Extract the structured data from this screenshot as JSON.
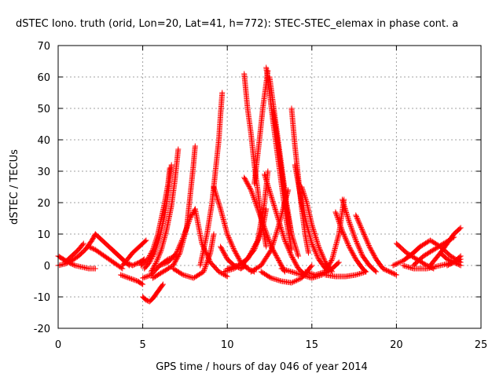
{
  "chart_data": {
    "type": "scatter",
    "title": "dSTEC Iono. truth (orid, Lon=20, Lat=41, h=772): STEC-STEC_elemax in phase cont. a",
    "xlabel": "GPS time / hours of day 046 of year 2014",
    "ylabel": "dSTEC  / TECUs",
    "xlim": [
      0,
      25
    ],
    "ylim": [
      -20,
      70
    ],
    "xticks": [
      0,
      5,
      10,
      15,
      20,
      25
    ],
    "yticks": [
      -20,
      -10,
      0,
      10,
      20,
      30,
      40,
      50,
      60,
      70
    ],
    "grid": true,
    "marker": "+",
    "series_color": "#ff0000",
    "series": [
      {
        "x": [
          0.0,
          0.3,
          0.6,
          1.0,
          1.4,
          1.8,
          2.2
        ],
        "y": [
          3.0,
          2.0,
          1.0,
          0.0,
          -0.5,
          -1.0,
          -1.0
        ]
      },
      {
        "x": [
          0.0,
          0.4,
          0.8,
          1.2,
          1.6,
          2.0,
          2.2
        ],
        "y": [
          0.0,
          0.5,
          1.5,
          3.0,
          5.0,
          8.0,
          10.0
        ]
      },
      {
        "x": [
          0.4,
          0.8,
          1.2,
          1.5
        ],
        "y": [
          1.0,
          3.0,
          5.0,
          7.0
        ]
      },
      {
        "x": [
          1.8,
          2.2,
          2.6,
          3.0,
          3.4,
          3.8
        ],
        "y": [
          6.0,
          5.0,
          3.5,
          2.0,
          0.5,
          -1.0
        ]
      },
      {
        "x": [
          2.2,
          2.6,
          3.0,
          3.4,
          3.8,
          4.2
        ],
        "y": [
          10.0,
          8.0,
          6.0,
          4.0,
          2.0,
          0.0
        ]
      },
      {
        "x": [
          3.2,
          3.6,
          4.0,
          4.4,
          4.8,
          5.1
        ],
        "y": [
          5.0,
          3.0,
          1.0,
          0.0,
          1.0,
          2.0
        ]
      },
      {
        "x": [
          3.8,
          4.1,
          4.4,
          4.6
        ],
        "y": [
          0.0,
          2.0,
          4.0,
          5.0
        ]
      },
      {
        "x": [
          4.6,
          4.8,
          5.0,
          5.2
        ],
        "y": [
          5.0,
          6.0,
          7.0,
          8.0
        ]
      },
      {
        "x": [
          3.7,
          4.2,
          4.7,
          5.0
        ],
        "y": [
          -3.0,
          -4.0,
          -5.0,
          -6.0
        ]
      },
      {
        "x": [
          5.0,
          5.2,
          5.4,
          5.6,
          5.8,
          6.0,
          6.2
        ],
        "y": [
          -10.0,
          -11.0,
          -11.5,
          -10.5,
          -9.0,
          -7.5,
          -6.0
        ]
      },
      {
        "x": [
          4.9,
          5.3,
          5.6,
          5.9,
          6.1,
          6.3,
          6.5,
          6.6
        ],
        "y": [
          0.0,
          2.0,
          5.0,
          10.0,
          15.0,
          20.0,
          26.0,
          31.0
        ]
      },
      {
        "x": [
          5.1,
          5.4,
          5.7,
          6.0,
          6.3,
          6.5,
          6.7
        ],
        "y": [
          -1.0,
          1.0,
          4.0,
          9.0,
          16.0,
          23.0,
          32.0
        ]
      },
      {
        "x": [
          5.5,
          5.8,
          6.1,
          6.4,
          6.7,
          6.9,
          7.1
        ],
        "y": [
          -2.0,
          1.0,
          5.0,
          11.0,
          19.0,
          27.0,
          37.0
        ]
      },
      {
        "x": [
          5.0,
          5.5,
          6.0,
          6.5,
          7.0
        ],
        "y": [
          -4.0,
          -3.0,
          0.0,
          2.0,
          3.0
        ]
      },
      {
        "x": [
          5.6,
          6.2,
          6.8,
          7.2,
          7.6,
          7.8,
          8.0,
          8.1
        ],
        "y": [
          -4.0,
          -2.0,
          0.0,
          4.0,
          12.0,
          22.0,
          32.0,
          38.0
        ]
      },
      {
        "x": [
          6.0,
          6.5,
          7.0,
          7.4,
          7.8,
          8.1
        ],
        "y": [
          0.0,
          1.0,
          4.0,
          9.0,
          15.0,
          18.0
        ]
      },
      {
        "x": [
          8.1,
          8.5,
          9.0,
          9.5,
          10.0
        ],
        "y": [
          18.0,
          7.0,
          1.0,
          -2.0,
          -3.5
        ]
      },
      {
        "x": [
          6.8,
          7.4,
          8.0,
          8.6,
          9.0,
          9.2
        ],
        "y": [
          -1.0,
          -3.0,
          -4.0,
          -2.0,
          4.0,
          10.0
        ]
      },
      {
        "x": [
          8.4,
          8.8,
          9.1,
          9.3,
          9.5,
          9.6,
          9.7
        ],
        "y": [
          0.0,
          10.0,
          20.0,
          30.0,
          40.0,
          48.0,
          55.0
        ]
      },
      {
        "x": [
          9.2,
          9.6,
          10.0,
          10.4,
          10.8,
          11.2,
          11.6
        ],
        "y": [
          25.0,
          18.0,
          10.0,
          5.0,
          1.0,
          -1.0,
          -2.0
        ]
      },
      {
        "x": [
          9.6,
          10.0,
          10.4,
          10.8,
          11.1
        ],
        "y": [
          6.0,
          2.0,
          0.0,
          -1.0,
          0.0
        ]
      },
      {
        "x": [
          10.0,
          10.6,
          11.2,
          11.8,
          12.2,
          12.4
        ],
        "y": [
          -1.0,
          0.0,
          2.0,
          8.0,
          20.0,
          30.0
        ]
      },
      {
        "x": [
          9.8,
          10.4,
          11.0,
          11.6,
          12.1,
          12.3
        ],
        "y": [
          -2.0,
          -1.0,
          1.0,
          5.0,
          12.0,
          18.0
        ]
      },
      {
        "x": [
          11.0,
          11.2,
          11.4,
          11.6,
          11.8,
          12.0,
          12.3
        ],
        "y": [
          61.0,
          50.0,
          42.0,
          32.0,
          24.0,
          15.0,
          6.0
        ]
      },
      {
        "x": [
          11.6,
          11.9,
          12.1,
          12.3,
          12.4
        ],
        "y": [
          26.0,
          40.0,
          50.0,
          58.0,
          62.0
        ]
      },
      {
        "x": [
          12.3,
          12.5,
          12.7,
          12.9,
          13.1,
          13.3,
          13.5,
          13.8
        ],
        "y": [
          63.0,
          55.0,
          46.0,
          38.0,
          30.0,
          22.0,
          14.0,
          5.0
        ]
      },
      {
        "x": [
          12.5,
          12.7,
          12.9,
          13.1,
          13.3,
          13.5,
          13.8
        ],
        "y": [
          60.0,
          52.0,
          44.0,
          36.0,
          28.0,
          20.0,
          10.0
        ]
      },
      {
        "x": [
          12.7,
          12.9,
          13.1,
          13.3,
          13.5,
          13.8,
          14.2
        ],
        "y": [
          49.0,
          42.0,
          34.0,
          26.0,
          18.0,
          10.0,
          3.0
        ]
      },
      {
        "x": [
          11.0,
          11.4,
          11.8,
          12.2,
          12.6,
          13.0,
          13.4
        ],
        "y": [
          28.0,
          24.0,
          18.0,
          12.0,
          6.0,
          2.0,
          -2.0
        ]
      },
      {
        "x": [
          12.2,
          12.6,
          13.0,
          13.4,
          13.8,
          14.2,
          14.6
        ],
        "y": [
          29.0,
          22.0,
          15.0,
          8.0,
          3.0,
          -1.0,
          -3.0
        ]
      },
      {
        "x": [
          11.4,
          12.0,
          12.6,
          13.0,
          13.4,
          13.6
        ],
        "y": [
          -2.0,
          0.0,
          5.0,
          12.0,
          20.0,
          24.0
        ]
      },
      {
        "x": [
          13.8,
          14.0,
          14.2,
          14.4,
          14.6,
          14.8
        ],
        "y": [
          50.0,
          38.0,
          28.0,
          18.0,
          10.0,
          4.0
        ]
      },
      {
        "x": [
          14.0,
          14.2,
          14.4,
          14.7,
          15.0,
          15.4,
          15.8
        ],
        "y": [
          32.0,
          26.0,
          20.0,
          13.0,
          7.0,
          2.0,
          -1.0
        ]
      },
      {
        "x": [
          14.4,
          14.7,
          15.0,
          15.4,
          15.8,
          16.2
        ],
        "y": [
          25.0,
          20.0,
          13.0,
          6.0,
          1.0,
          -2.0
        ]
      },
      {
        "x": [
          12.0,
          12.6,
          13.2,
          13.8,
          14.4,
          15.0
        ],
        "y": [
          -2.0,
          -4.0,
          -5.0,
          -5.5,
          -4.0,
          0.0
        ]
      },
      {
        "x": [
          13.2,
          13.8,
          14.4,
          15.0,
          15.6,
          16.2,
          16.6
        ],
        "y": [
          -1.0,
          -2.0,
          -3.0,
          -4.0,
          -3.0,
          -1.0,
          1.0
        ]
      },
      {
        "x": [
          14.6,
          15.2,
          15.8,
          16.2,
          16.6,
          16.9
        ],
        "y": [
          -2.0,
          -3.0,
          -2.0,
          2.0,
          10.0,
          21.0
        ]
      },
      {
        "x": [
          16.8,
          17.2,
          17.6,
          18.0,
          18.4,
          18.8
        ],
        "y": [
          21.0,
          14.0,
          8.0,
          3.0,
          0.0,
          -2.0
        ]
      },
      {
        "x": [
          16.4,
          16.8,
          17.2,
          17.6,
          18.0,
          18.2
        ],
        "y": [
          17.0,
          11.0,
          6.0,
          2.0,
          -1.0,
          -2.0
        ]
      },
      {
        "x": [
          17.6,
          18.0,
          18.4,
          18.8,
          19.2,
          19.6,
          20.0
        ],
        "y": [
          16.0,
          11.0,
          6.0,
          2.0,
          -1.0,
          -2.0,
          -3.0
        ]
      },
      {
        "x": [
          15.8,
          16.4,
          17.0,
          17.6,
          18.2
        ],
        "y": [
          -3.0,
          -3.5,
          -3.5,
          -3.0,
          -2.0
        ]
      },
      {
        "x": [
          20.0,
          20.6,
          21.2,
          21.8,
          22.2
        ],
        "y": [
          7.0,
          4.0,
          2.0,
          0.0,
          -1.0
        ]
      },
      {
        "x": [
          19.8,
          20.4,
          21.0,
          21.4
        ],
        "y": [
          0.0,
          1.5,
          4.0,
          6.0
        ]
      },
      {
        "x": [
          20.8,
          21.4,
          22.0,
          22.6,
          23.2,
          23.8
        ],
        "y": [
          3.0,
          6.0,
          8.0,
          6.0,
          3.0,
          1.0
        ]
      },
      {
        "x": [
          21.0,
          21.6,
          22.2,
          22.8,
          23.4
        ],
        "y": [
          0.0,
          3.0,
          5.0,
          7.0,
          9.0
        ]
      },
      {
        "x": [
          22.0,
          22.6,
          23.0,
          23.4,
          23.8
        ],
        "y": [
          0.0,
          4.0,
          7.0,
          10.0,
          12.0
        ]
      },
      {
        "x": [
          22.6,
          23.0,
          23.4,
          23.8
        ],
        "y": [
          4.0,
          2.0,
          1.0,
          0.0
        ]
      },
      {
        "x": [
          20.4,
          21.0,
          21.8,
          22.6,
          23.4,
          23.8
        ],
        "y": [
          0.0,
          -1.0,
          -1.0,
          0.0,
          1.0,
          2.0
        ]
      },
      {
        "x": [
          23.0,
          23.4,
          23.8
        ],
        "y": [
          0.0,
          1.0,
          3.0
        ]
      }
    ]
  }
}
